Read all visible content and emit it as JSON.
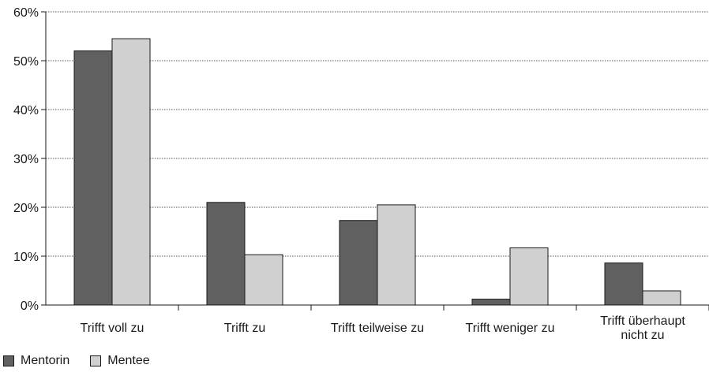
{
  "chart_data": {
    "type": "bar",
    "categories": [
      [
        "Trifft voll zu"
      ],
      [
        "Trifft zu"
      ],
      [
        "Trifft teilweise zu"
      ],
      [
        "Trifft weniger zu"
      ],
      [
        "Trifft überhaupt",
        "nicht zu"
      ]
    ],
    "series": [
      {
        "name": "Mentorin",
        "color": "#606060",
        "values": [
          0.52,
          0.21,
          0.173,
          0.012,
          0.086
        ]
      },
      {
        "name": "Mentee",
        "color": "#d0d0d0",
        "values": [
          0.545,
          0.103,
          0.205,
          0.117,
          0.029
        ]
      }
    ],
    "ylim": [
      0,
      0.6
    ],
    "yticks": [
      "0%",
      "10%",
      "20%",
      "30%",
      "40%",
      "50%",
      "60%"
    ],
    "grid": true,
    "legend_position": "bottom-left"
  }
}
